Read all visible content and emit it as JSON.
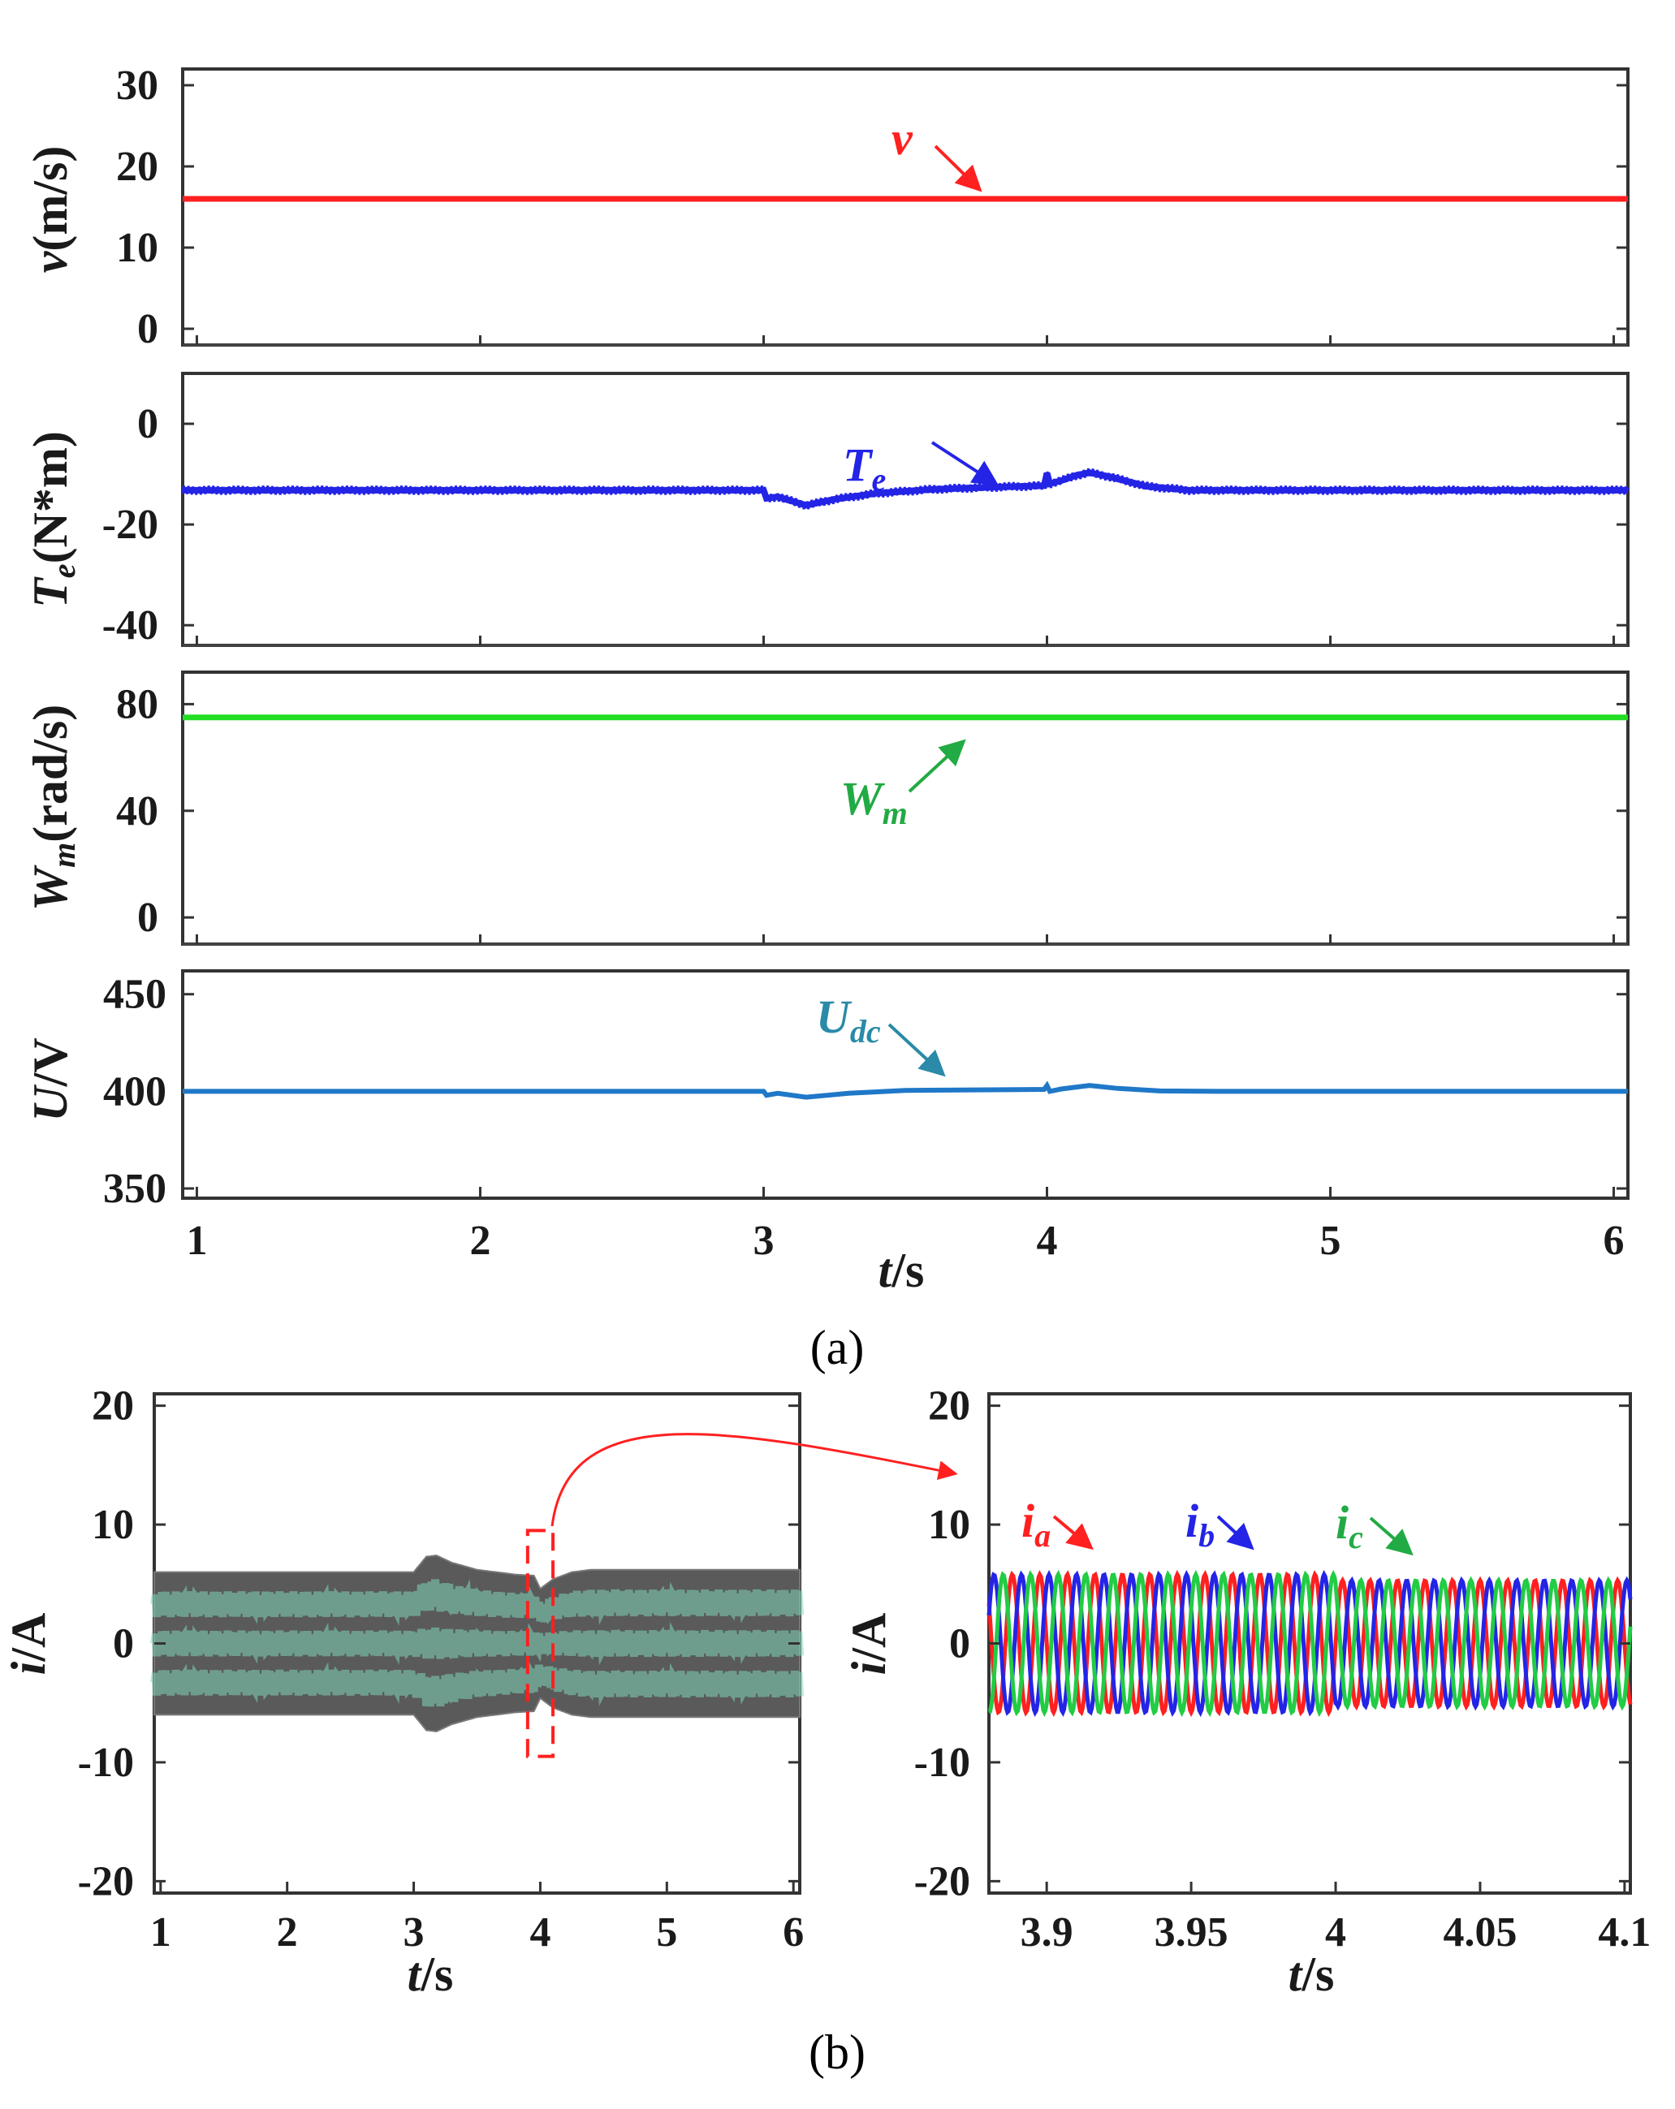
{
  "colors": {
    "v": "#ff2020",
    "Te": "#2424e6",
    "Wm": "#22dd22",
    "Udc": "#1f78c8",
    "Udc_label": "#2a8aa8",
    "ia": "#ff2020",
    "ib": "#2424e6",
    "ic": "#22cc44",
    "envelope": "#5a5a5a",
    "envelope_inner": "#7fd6b8",
    "zoom_box": "#ff2020"
  },
  "icons": {
    "zoom_arrow": "curved-arrow-icon",
    "label_arrow": "pointer-arrow-icon"
  },
  "captions": {
    "a": "(a)",
    "b": "(b)"
  },
  "axis_text": {
    "a_x": [
      "t",
      "/s"
    ],
    "v_y": [
      "v",
      "(m/s)"
    ],
    "te_y": [
      "T",
      "e",
      "(N*m)"
    ],
    "wm_y": [
      "W",
      "m",
      "(rad/s)"
    ],
    "u_y": [
      "U",
      "/V"
    ],
    "b1_x": [
      "t",
      "/s"
    ],
    "b1_y": [
      "i",
      "/A"
    ],
    "b2_x": [
      "t",
      "/s"
    ],
    "b2_y": [
      "i",
      "/A"
    ]
  },
  "annotations": {
    "v": {
      "main": "v",
      "sub": ""
    },
    "Te": {
      "main": "T",
      "sub": "e"
    },
    "Wm": {
      "main": "W",
      "sub": "m"
    },
    "Udc": {
      "main": "U",
      "sub": "dc"
    },
    "ia": {
      "main": "i",
      "sub": "a"
    },
    "ib": {
      "main": "i",
      "sub": "b"
    },
    "ic": {
      "main": "i",
      "sub": "c"
    }
  },
  "chart_data": [
    {
      "id": "a_v",
      "type": "line",
      "title": "(a)",
      "xlabel": "t/s",
      "ylabel": "v(m/s)",
      "xlim": [
        0.95,
        6.05
      ],
      "ylim": [
        -2,
        32
      ],
      "xticks": [
        1,
        2,
        3,
        4,
        5,
        6
      ],
      "yticks": [
        0,
        10,
        20,
        30
      ],
      "ytick_labels": [
        "0",
        "10",
        "20",
        "30"
      ],
      "series": [
        {
          "name": "v",
          "x": [
            0.95,
            6.05
          ],
          "values": [
            16,
            16
          ]
        }
      ]
    },
    {
      "id": "a_te",
      "type": "line",
      "xlabel": "t/s",
      "ylabel": "Te(N*m)",
      "xlim": [
        0.95,
        6.05
      ],
      "ylim": [
        -44,
        10
      ],
      "xticks": [
        1,
        2,
        3,
        4,
        5,
        6
      ],
      "yticks": [
        -40,
        -20,
        0
      ],
      "ytick_labels": [
        "-40",
        "-20",
        "0"
      ],
      "series": [
        {
          "name": "Te",
          "x": [
            0.95,
            3.0,
            3.01,
            3.05,
            3.15,
            3.25,
            3.4,
            3.6,
            3.8,
            3.99,
            4.0,
            4.01,
            4.05,
            4.1,
            4.15,
            4.22,
            4.35,
            4.5,
            6.05
          ],
          "values": [
            -13.2,
            -13.2,
            -14.8,
            -14.5,
            -16.2,
            -15.0,
            -13.8,
            -13.0,
            -12.6,
            -12.3,
            -9.8,
            -11.9,
            -11.3,
            -10.3,
            -9.7,
            -10.5,
            -12.4,
            -13.2,
            -13.2
          ]
        }
      ]
    },
    {
      "id": "a_wm",
      "type": "line",
      "xlabel": "t/s",
      "ylabel": "Wm(rad/s)",
      "xlim": [
        0.95,
        6.05
      ],
      "ylim": [
        -10,
        92
      ],
      "xticks": [
        1,
        2,
        3,
        4,
        5,
        6
      ],
      "yticks": [
        0,
        40,
        80
      ],
      "ytick_labels": [
        "0",
        "40",
        "80"
      ],
      "series": [
        {
          "name": "Wm",
          "x": [
            0.95,
            6.05
          ],
          "values": [
            75,
            75
          ]
        }
      ]
    },
    {
      "id": "a_udc",
      "type": "line",
      "xlabel": "t/s",
      "ylabel": "U/V",
      "xlim": [
        0.95,
        6.05
      ],
      "ylim": [
        345,
        462
      ],
      "xticks": [
        1,
        2,
        3,
        4,
        5,
        6
      ],
      "xtick_labels": [
        "1",
        "2",
        "3",
        "4",
        "5",
        "6"
      ],
      "yticks": [
        350,
        400,
        450
      ],
      "ytick_labels": [
        "350",
        "400",
        "450"
      ],
      "series": [
        {
          "name": "Udc",
          "x": [
            0.95,
            3.0,
            3.01,
            3.05,
            3.15,
            3.3,
            3.5,
            3.8,
            3.99,
            4.0,
            4.01,
            4.05,
            4.15,
            4.25,
            4.4,
            4.6,
            6.05
          ],
          "values": [
            400,
            400,
            398,
            399,
            397,
            399,
            400.5,
            400.8,
            401,
            403,
            400,
            401.2,
            403,
            401.5,
            400.2,
            400,
            400
          ]
        }
      ]
    },
    {
      "id": "b_left",
      "type": "area",
      "title": "(b)",
      "xlabel": "t/s",
      "ylabel": "i/A",
      "xlim": [
        0.95,
        6.05
      ],
      "ylim": [
        -21,
        21
      ],
      "xticks": [
        1,
        2,
        3,
        4,
        5,
        6
      ],
      "xtick_labels": [
        "1",
        "2",
        "3",
        "4",
        "5",
        "6"
      ],
      "yticks": [
        -20,
        -10,
        0,
        10,
        20
      ],
      "ytick_labels": [
        "-20",
        "-10",
        "0",
        "10",
        "20"
      ],
      "envelope": {
        "x": [
          0.95,
          3.0,
          3.1,
          3.18,
          3.3,
          3.5,
          3.8,
          3.95,
          4.0,
          4.1,
          4.25,
          4.4,
          6.05
        ],
        "amplitude": [
          6,
          6,
          7.3,
          7.4,
          6.8,
          6.2,
          5.8,
          5.7,
          4.6,
          5.4,
          6.0,
          6.2,
          6.2
        ]
      },
      "zoom_box": {
        "x": [
          3.9,
          4.1
        ],
        "y": [
          -9.5,
          9.5
        ]
      }
    },
    {
      "id": "b_right",
      "type": "line",
      "xlabel": "t/s",
      "ylabel": "i/A",
      "xlim": [
        3.88,
        4.102
      ],
      "ylim": [
        -21,
        21
      ],
      "xticks": [
        3.9,
        3.95,
        4.0,
        4.05,
        4.1
      ],
      "xtick_labels": [
        "3.9",
        "3.95",
        "4",
        "4.05",
        "4.1"
      ],
      "yticks": [
        -20,
        -10,
        0,
        10,
        20
      ],
      "ytick_labels": [
        "-20",
        "-10",
        "0",
        "10",
        "20"
      ],
      "frequency_hz": 105,
      "amplitude": {
        "before_4s": 5.8,
        "after_4s": 5.3
      },
      "series": [
        {
          "name": "ia",
          "phase_deg": 0
        },
        {
          "name": "ib",
          "phase_deg": -120
        },
        {
          "name": "ic",
          "phase_deg": 120
        }
      ]
    }
  ]
}
